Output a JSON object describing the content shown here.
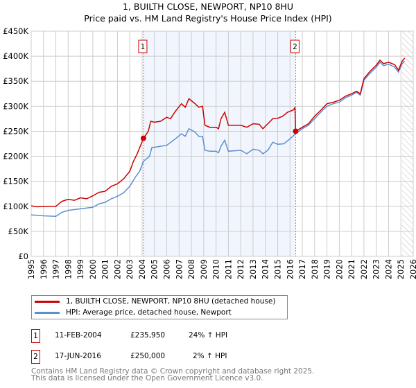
{
  "chart_data": {
    "type": "line",
    "title": "1, BUILTH CLOSE, NEWPORT, NP10 8HU",
    "subtitle": "Price paid vs. HM Land Registry's House Price Index (HPI)",
    "xlim": [
      1995,
      2026
    ],
    "ylim": [
      0,
      450000
    ],
    "yticks": [
      {
        "v": 0,
        "label": "£0"
      },
      {
        "v": 50000,
        "label": "£50K"
      },
      {
        "v": 100000,
        "label": "£100K"
      },
      {
        "v": 150000,
        "label": "£150K"
      },
      {
        "v": 200000,
        "label": "£200K"
      },
      {
        "v": 250000,
        "label": "£250K"
      },
      {
        "v": 300000,
        "label": "£300K"
      },
      {
        "v": 350000,
        "label": "£350K"
      },
      {
        "v": 400000,
        "label": "£400K"
      },
      {
        "v": 450000,
        "label": "£450K"
      }
    ],
    "xticks": [
      "1995",
      "1996",
      "1997",
      "1998",
      "1999",
      "2000",
      "2001",
      "2002",
      "2003",
      "2004",
      "2005",
      "2006",
      "2007",
      "2008",
      "2009",
      "2010",
      "2011",
      "2012",
      "2013",
      "2014",
      "2015",
      "2016",
      "2017",
      "2018",
      "2019",
      "2020",
      "2021",
      "2022",
      "2023",
      "2024",
      "2025",
      "2026"
    ],
    "grid": true,
    "shaded_range": [
      2004.11,
      2016.46
    ],
    "hatched_from": 2025.1,
    "series": [
      {
        "name": "1, BUILTH CLOSE, NEWPORT, NP10 8HU (detached house)",
        "color": "#cc0000",
        "x": [
          1995,
          1995.5,
          1996,
          1996.5,
          1997,
          1997.5,
          1998,
          1998.5,
          1999,
          1999.5,
          2000,
          2000.5,
          2001,
          2001.5,
          2002,
          2002.5,
          2003,
          2003.3,
          2003.6,
          2004.11,
          2004.5,
          2004.7,
          2005,
          2005.5,
          2006,
          2006.3,
          2006.7,
          2007.2,
          2007.5,
          2007.8,
          2008.3,
          2008.6,
          2008.9,
          2009.1,
          2009.5,
          2010,
          2010.2,
          2010.4,
          2010.7,
          2011,
          2011.5,
          2012,
          2012.5,
          2013,
          2013.5,
          2013.8,
          2014.2,
          2014.6,
          2015,
          2015.4,
          2015.8,
          2016.3,
          2016.4,
          2016.46,
          2017,
          2017.5,
          2018,
          2018.5,
          2019,
          2019.5,
          2020,
          2020.5,
          2021,
          2021.4,
          2021.7,
          2022,
          2022.5,
          2023,
          2023.3,
          2023.6,
          2024,
          2024.5,
          2024.8,
          2025.1,
          2025.3
        ],
        "y": [
          101000,
          99000,
          100000,
          100000,
          100000,
          110000,
          114000,
          112000,
          117000,
          115000,
          121000,
          128000,
          130000,
          140000,
          145000,
          155000,
          170000,
          190000,
          205000,
          235950,
          250000,
          270000,
          268000,
          270000,
          278000,
          275000,
          290000,
          305000,
          298000,
          315000,
          305000,
          298000,
          300000,
          262000,
          258000,
          258000,
          255000,
          275000,
          288000,
          262000,
          262000,
          262000,
          258000,
          265000,
          264000,
          255000,
          265000,
          275000,
          276000,
          280000,
          288000,
          293000,
          298000,
          250000,
          258000,
          265000,
          280000,
          292000,
          305000,
          308000,
          312000,
          320000,
          325000,
          330000,
          325000,
          355000,
          370000,
          382000,
          392000,
          385000,
          388000,
          383000,
          372000,
          390000,
          396000
        ]
      },
      {
        "name": "HPI: Average price, detached house, Newport",
        "color": "#5b8fd0",
        "x": [
          1995,
          1996,
          1997,
          1997.5,
          1998,
          1999,
          2000,
          2000.5,
          2001,
          2001.5,
          2002,
          2002.5,
          2003,
          2003.5,
          2003.8,
          2004.11,
          2004.6,
          2004.8,
          2005,
          2006,
          2006.7,
          2007.2,
          2007.5,
          2007.8,
          2008.3,
          2008.6,
          2008.9,
          2009.1,
          2009.5,
          2010,
          2010.2,
          2010.4,
          2010.7,
          2011,
          2012,
          2012.5,
          2013,
          2013.5,
          2013.8,
          2014.2,
          2014.6,
          2015,
          2015.5,
          2016,
          2016.46,
          2017,
          2017.5,
          2018,
          2018.5,
          2019,
          2019.5,
          2020,
          2020.5,
          2021,
          2021.4,
          2021.7,
          2022,
          2022.5,
          2023,
          2023.3,
          2023.6,
          2024,
          2024.5,
          2024.8,
          2025.1,
          2025.3
        ],
        "y": [
          83000,
          81000,
          80000,
          88000,
          92000,
          95000,
          98000,
          105000,
          108000,
          115000,
          120000,
          127000,
          140000,
          160000,
          170000,
          190000,
          200000,
          218000,
          218000,
          222000,
          235000,
          245000,
          240000,
          255000,
          248000,
          240000,
          240000,
          212000,
          210000,
          210000,
          207000,
          220000,
          232000,
          210000,
          212000,
          205000,
          214000,
          212000,
          205000,
          212000,
          228000,
          224000,
          225000,
          235000,
          245000,
          255000,
          262000,
          275000,
          288000,
          300000,
          305000,
          308000,
          317000,
          322000,
          328000,
          322000,
          352000,
          366000,
          378000,
          388000,
          381000,
          384000,
          378000,
          368000,
          385000,
          390000
        ]
      }
    ],
    "transactions": [
      {
        "label": "1",
        "x": 2004.11,
        "y": 235950
      },
      {
        "label": "2",
        "x": 2016.46,
        "y": 250000
      }
    ]
  },
  "legend": {
    "items": [
      {
        "label": "1, BUILTH CLOSE, NEWPORT, NP10 8HU (detached house)",
        "color": "#cc0000"
      },
      {
        "label": "HPI: Average price, detached house, Newport",
        "color": "#5b8fd0"
      }
    ]
  },
  "table": {
    "rows": [
      {
        "num": "1",
        "date": "11-FEB-2004",
        "price": "£235,950",
        "hpi": "24% ↑ HPI"
      },
      {
        "num": "2",
        "date": "17-JUN-2016",
        "price": "£250,000",
        "hpi": "2% ↑ HPI"
      }
    ]
  },
  "footer": {
    "line1": "Contains HM Land Registry data © Crown copyright and database right 2025.",
    "line2": "This data is licensed under the Open Government Licence v3.0."
  }
}
